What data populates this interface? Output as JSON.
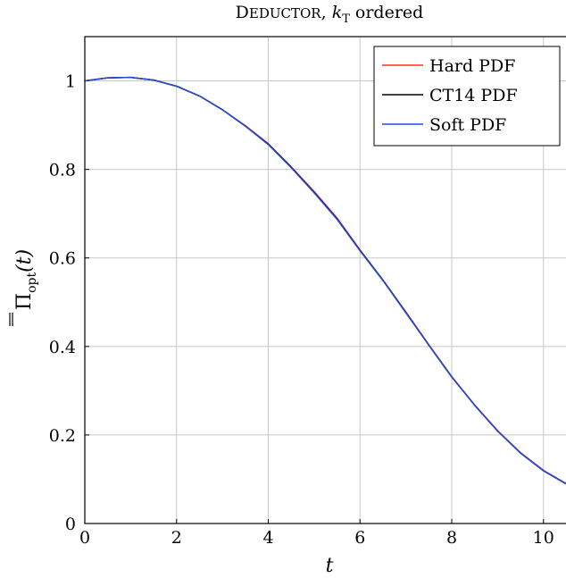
{
  "chart_data": {
    "type": "line",
    "title": "DEDUCTOR, kT ordered",
    "title_parts": {
      "first_letter": "D",
      "rest_small_caps": "EDUCTOR",
      "comma": ",",
      "k": "k",
      "sub": "T",
      "tail": " ordered"
    },
    "xlabel": "t",
    "ylabel": "Π̄opt(t)",
    "ylabel_parts": {
      "main": "Π",
      "sub": "opt",
      "arg": "(t)"
    },
    "xlim": [
      0,
      10.9
    ],
    "ylim": [
      0,
      1.1
    ],
    "x_ticks": [
      0,
      2,
      4,
      6,
      8,
      10
    ],
    "y_ticks": [
      0,
      0.2,
      0.4,
      0.6,
      0.8,
      1
    ],
    "grid": true,
    "legend_position": "top-right",
    "series": [
      {
        "name": "Hard PDF",
        "color": "#ff2a2a",
        "x": [
          0,
          0.5,
          1,
          1.5,
          2,
          2.5,
          3,
          3.5,
          4,
          4.5,
          5,
          5.5,
          6,
          6.5,
          7,
          7.5,
          8,
          8.5,
          9,
          9.5,
          10,
          10.5,
          10.9
        ],
        "y": [
          1.0,
          1.007,
          1.008,
          1.002,
          0.988,
          0.966,
          0.935,
          0.899,
          0.858,
          0.806,
          0.75,
          0.69,
          0.618,
          0.55,
          0.478,
          0.404,
          0.332,
          0.268,
          0.21,
          0.16,
          0.12,
          0.09,
          0.065
        ]
      },
      {
        "name": "CT14 PDF",
        "color": "#000000",
        "x": [
          0,
          0.5,
          1,
          1.5,
          2,
          2.5,
          3,
          3.5,
          4,
          4.5,
          5,
          5.5,
          6,
          6.5,
          7,
          7.5,
          8,
          8.5,
          9,
          9.5,
          10,
          10.5,
          10.9
        ],
        "y": [
          1.0,
          1.007,
          1.008,
          1.002,
          0.988,
          0.966,
          0.935,
          0.898,
          0.857,
          0.805,
          0.748,
          0.688,
          0.617,
          0.55,
          0.477,
          0.403,
          0.331,
          0.267,
          0.209,
          0.159,
          0.119,
          0.089,
          0.065
        ]
      },
      {
        "name": "Soft PDF",
        "color": "#1f4fd8",
        "x": [
          0,
          0.5,
          1,
          1.5,
          2,
          2.5,
          3,
          3.5,
          4,
          4.5,
          5,
          5.5,
          6,
          6.5,
          7,
          7.5,
          8,
          8.5,
          9,
          9.5,
          10,
          10.5,
          10.9
        ],
        "y": [
          1.0,
          1.007,
          1.008,
          1.002,
          0.988,
          0.966,
          0.935,
          0.898,
          0.856,
          0.804,
          0.747,
          0.687,
          0.616,
          0.549,
          0.476,
          0.403,
          0.331,
          0.267,
          0.209,
          0.159,
          0.119,
          0.089,
          0.065
        ]
      }
    ]
  }
}
